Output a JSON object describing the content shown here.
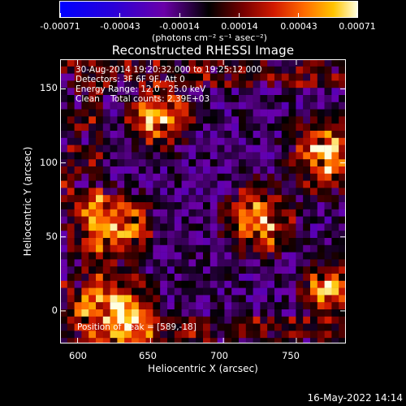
{
  "colorbar": {
    "tick_labels": [
      "-0.00071",
      "-0.00043",
      "-0.00014",
      "0.00014",
      "0.00043",
      "0.00071"
    ],
    "units": "(photons cm⁻² s⁻¹ asec⁻²)"
  },
  "plot": {
    "title": "Reconstructed RHESSI Image",
    "xlabel": "Heliocentric X (arcsec)",
    "ylabel": "Heliocentric Y (arcsec)",
    "x_ticks": [
      "600",
      "650",
      "700",
      "750"
    ],
    "y_ticks": [
      "0",
      "50",
      "100",
      "150"
    ],
    "xlim": [
      588,
      784
    ],
    "ylim": [
      -22,
      170
    ]
  },
  "annotation": {
    "line1": "30-Aug-2014 19:20:32.000 to 19:25:12.000",
    "line2": "Detectors: 3F 6F 9F, Att 0",
    "line3": "Energy Range: 12.0 - 25.0 keV",
    "line4": "Clean    Total counts: 2.39E+03",
    "peak": "Position of Peak = [589,-18]"
  },
  "footer": {
    "date": "16-May-2022 14:14"
  },
  "colors": {
    "background": "#000000",
    "foreground": "#ffffff"
  }
}
